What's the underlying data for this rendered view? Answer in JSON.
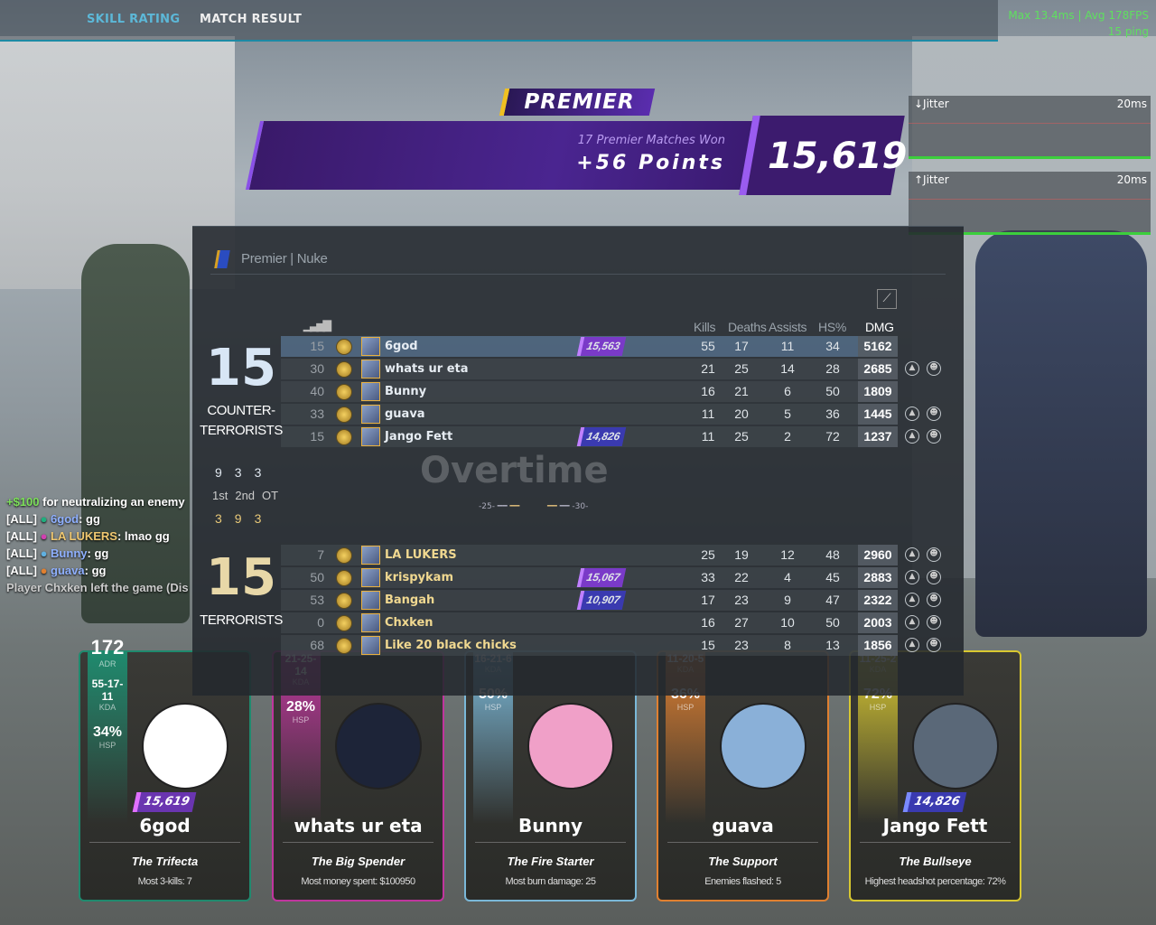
{
  "topbar": {
    "tabs": [
      {
        "label": "SKILL RATING",
        "active": true
      },
      {
        "label": "MATCH RESULT",
        "active": false
      }
    ],
    "accent": "#1d8aa5"
  },
  "perf": {
    "line1": "Max  13.4ms | Avg  178FPS",
    "line2": "15 ping"
  },
  "jitter": [
    {
      "label": "↓Jitter",
      "scale": "20ms"
    },
    {
      "label": "↑Jitter",
      "scale": "20ms"
    }
  ],
  "premier": {
    "logo": "PREMIER",
    "matches_won": "17  Premier Matches Won",
    "points": "+56 Points",
    "rating": "15,619"
  },
  "scoreboard": {
    "mode": "Premier",
    "map": "Nuke",
    "columns": [
      "Kills",
      "Deaths",
      "Assists",
      "HS%",
      "DMG"
    ],
    "ct": {
      "score": "15",
      "name_line1": "COUNTER-",
      "name_line2": "TERRORISTS",
      "halves": [
        "9",
        "3",
        "3"
      ],
      "players": [
        {
          "ping": "15",
          "name": "6god",
          "rating": "15,563",
          "rating_color": "#7a3ac8",
          "kills": "55",
          "deaths": "17",
          "assists": "11",
          "hs": "34",
          "dmg": "5162",
          "me": true,
          "icons": false
        },
        {
          "ping": "30",
          "name": "whats ur eta",
          "rating": "",
          "kills": "21",
          "deaths": "25",
          "assists": "14",
          "hs": "28",
          "dmg": "2685",
          "icons": true
        },
        {
          "ping": "40",
          "name": "Bunny",
          "rating": "",
          "kills": "16",
          "deaths": "21",
          "assists": "6",
          "hs": "50",
          "dmg": "1809",
          "icons": false
        },
        {
          "ping": "33",
          "name": "guava",
          "rating": "",
          "kills": "11",
          "deaths": "20",
          "assists": "5",
          "hs": "36",
          "dmg": "1445",
          "icons": true
        },
        {
          "ping": "15",
          "name": "Jango Fett",
          "rating": "14,826",
          "rating_color": "#3a3ab0",
          "kills": "11",
          "deaths": "25",
          "assists": "2",
          "hs": "72",
          "dmg": "1237",
          "icons": true
        }
      ]
    },
    "halves_labels": [
      "1st",
      "2nd",
      "OT"
    ],
    "overtime": {
      "label": "Overtime",
      "left": "25",
      "right": "30"
    },
    "t": {
      "score": "15",
      "name": "TERRORISTS",
      "halves": [
        "3",
        "9",
        "3"
      ],
      "players": [
        {
          "ping": "7",
          "name": "LA LUKERS",
          "rating": "",
          "kills": "25",
          "deaths": "19",
          "assists": "12",
          "hs": "48",
          "dmg": "2960",
          "icons": true
        },
        {
          "ping": "50",
          "name": "krispykam",
          "rating": "15,067",
          "rating_color": "#7a3ac8",
          "kills": "33",
          "deaths": "22",
          "assists": "4",
          "hs": "45",
          "dmg": "2883",
          "icons": true
        },
        {
          "ping": "53",
          "name": "Bangah",
          "rating": "10,907",
          "rating_color": "#3a3ab0",
          "kills": "17",
          "deaths": "23",
          "assists": "9",
          "hs": "47",
          "dmg": "2322",
          "icons": true
        },
        {
          "ping": "0",
          "name": "Chxken",
          "rating": "",
          "kills": "16",
          "deaths": "27",
          "assists": "10",
          "hs": "50",
          "dmg": "2003",
          "icons": true
        },
        {
          "ping": "68",
          "name": "Like 20 black chicks",
          "rating": "",
          "kills": "15",
          "deaths": "23",
          "assists": "8",
          "hs": "13",
          "dmg": "1856",
          "icons": true
        }
      ]
    }
  },
  "chat": [
    {
      "prefix": "+$100",
      "text": " for neutralizing an enemy"
    },
    {
      "tag": "[ALL]",
      "name": "6god",
      "name_color": "#8fb0ff",
      "dot": "#1fae7e",
      "msg": ": gg"
    },
    {
      "tag": "[ALL]",
      "name": "LA LUKERS",
      "name_color": "#f0c870",
      "dot": "#d040b0",
      "msg": ": lmao gg"
    },
    {
      "tag": "[ALL]",
      "name": "Bunny",
      "name_color": "#8fb0ff",
      "dot": "#60b0e0",
      "msg": ": gg"
    },
    {
      "tag": "[ALL]",
      "name": "guava",
      "name_color": "#8fb0ff",
      "dot": "#e08030",
      "msg": ": gg"
    },
    {
      "system": "Player Chxken left the game (Dis"
    }
  ],
  "cards": [
    {
      "name": "6god",
      "color": "#1f8a6e",
      "adr": "172",
      "adr_label": "ADR",
      "kda": "55-17-11",
      "kda_label": "KDA",
      "hsp": "34%",
      "hsp_label": "HSP",
      "rating": "15,619",
      "title": "The Trifecta",
      "desc": "Most 3-kills: 7"
    },
    {
      "name": "whats ur eta",
      "color": "#c0359e",
      "kda": "21-25-14",
      "kda_label": "KDA",
      "hsp": "28%",
      "hsp_label": "HSP",
      "title": "The Big Spender",
      "desc": "Most money spent: $100950"
    },
    {
      "name": "Bunny",
      "color": "#7ab8d8",
      "kda": "16-21-6",
      "kda_label": "KDA",
      "hsp": "50%",
      "hsp_label": "HSP",
      "title": "The Fire Starter",
      "desc": "Most burn damage: 25"
    },
    {
      "name": "guava",
      "color": "#e08030",
      "kda": "11-20-5",
      "kda_label": "KDA",
      "hsp": "36%",
      "hsp_label": "HSP",
      "title": "The Support",
      "desc": "Enemies flashed: 5"
    },
    {
      "name": "Jango Fett",
      "color": "#d8c830",
      "kda": "11-25-2",
      "kda_label": "KDA",
      "hsp": "72%",
      "hsp_label": "HSP",
      "rating": "14,826",
      "title": "The Bullseye",
      "desc": "Highest headshot percentage: 72%"
    }
  ]
}
